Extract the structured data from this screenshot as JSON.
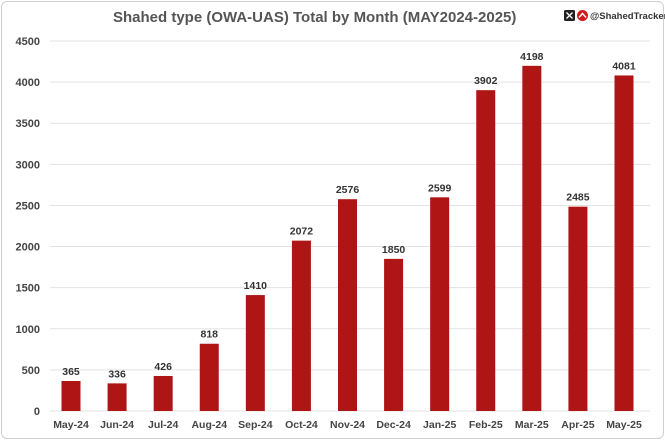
{
  "chart_data": {
    "type": "bar",
    "title": "Shahed type (OWA-UAS) Total by Month (MAY2024-2025)",
    "categories": [
      "May-24",
      "Jun-24",
      "Jul-24",
      "Aug-24",
      "Sep-24",
      "Oct-24",
      "Nov-24",
      "Dec-24",
      "Jan-25",
      "Feb-25",
      "Mar-25",
      "Apr-25",
      "May-25"
    ],
    "values": [
      365,
      336,
      426,
      818,
      1410,
      2072,
      2576,
      1850,
      2599,
      3902,
      4198,
      2485,
      4081
    ],
    "xlabel": "",
    "ylabel": "",
    "ylim": [
      0,
      4500
    ],
    "yticks": [
      0,
      500,
      1000,
      1500,
      2000,
      2500,
      3000,
      3500,
      4000,
      4500
    ],
    "grid": true,
    "legend": "none",
    "bar_color": "#b01515",
    "data_labels": true
  },
  "branding": {
    "handle": "@ShahedTracker",
    "icons": [
      "x-logo-icon",
      "shahed-tracker-logo-icon"
    ],
    "watermark": "@ShahedTracker"
  }
}
